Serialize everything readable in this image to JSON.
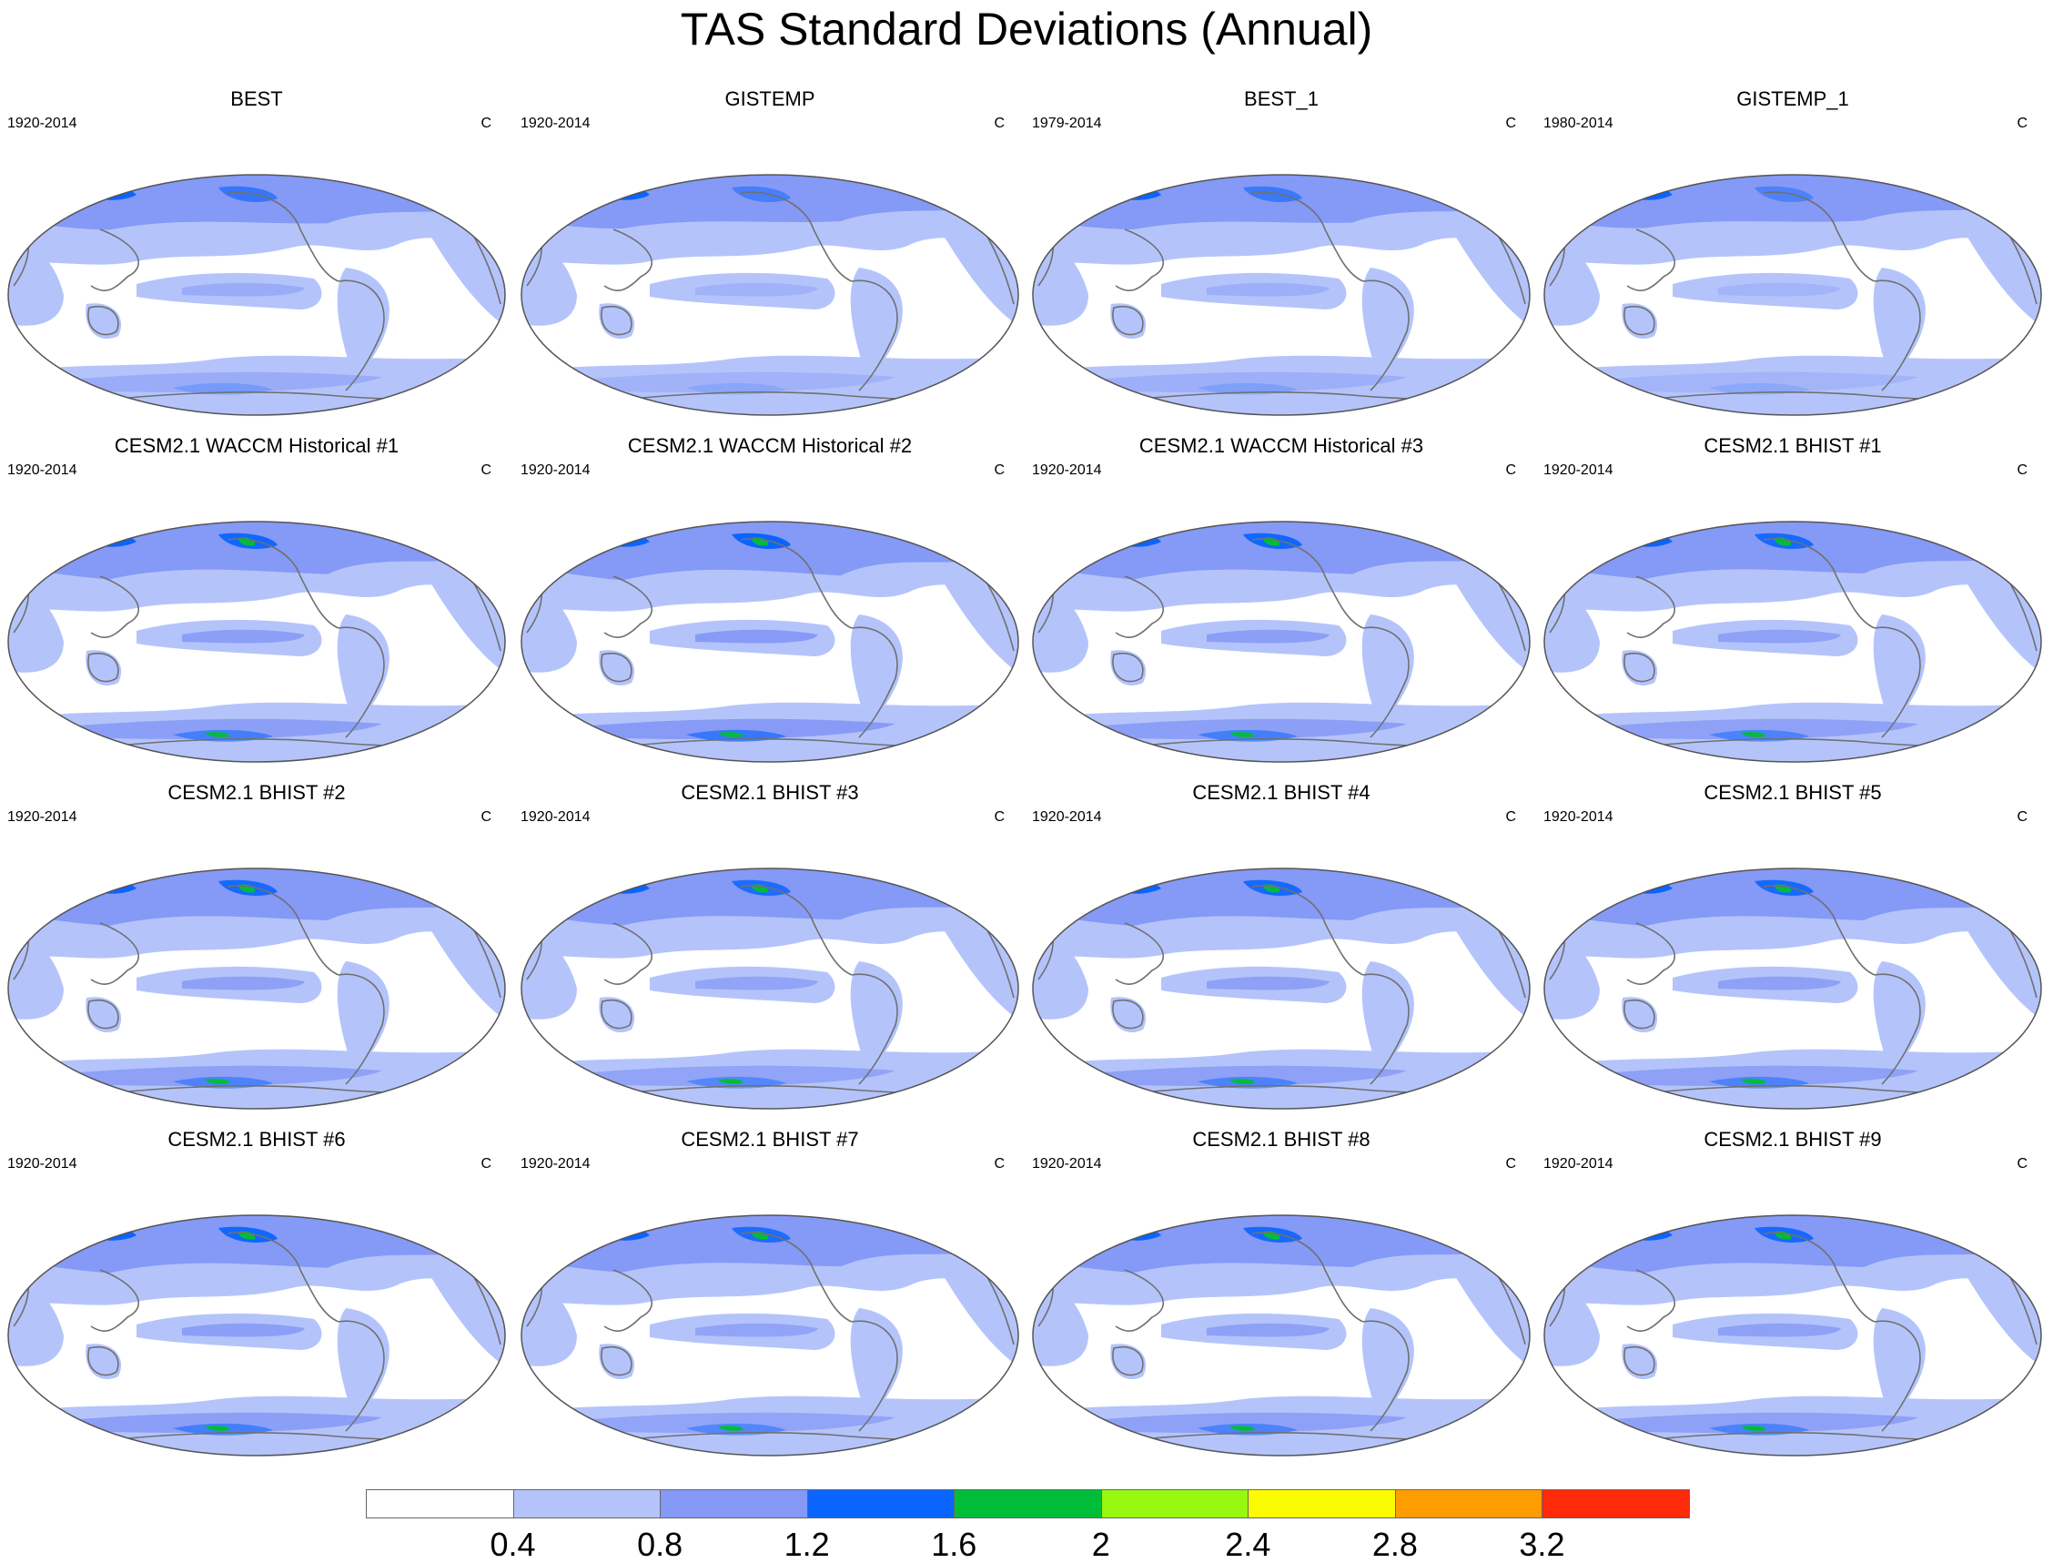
{
  "title": "TAS Standard Deviations (Annual)",
  "panels": [
    {
      "title": "BEST",
      "left": "1920-2014",
      "right": "C",
      "intensity": 0.55
    },
    {
      "title": "GISTEMP",
      "left": "1920-2014",
      "right": "C",
      "intensity": 0.4
    },
    {
      "title": "BEST_1",
      "left": "1979-2014",
      "right": "C",
      "intensity": 0.5
    },
    {
      "title": "GISTEMP_1",
      "left": "1980-2014",
      "right": "C",
      "intensity": 0.35
    },
    {
      "title": "CESM2.1 WACCM Historical #1",
      "left": "1920-2014",
      "right": "C",
      "intensity": 0.85
    },
    {
      "title": "CESM2.1 WACCM Historical #2",
      "left": "1920-2014",
      "right": "C",
      "intensity": 0.95
    },
    {
      "title": "CESM2.1 WACCM Historical #3",
      "left": "1920-2014",
      "right": "C",
      "intensity": 0.85
    },
    {
      "title": "CESM2.1 BHIST #1",
      "left": "1920-2014",
      "right": "C",
      "intensity": 0.8
    },
    {
      "title": "CESM2.1 BHIST #2",
      "left": "1920-2014",
      "right": "C",
      "intensity": 0.8
    },
    {
      "title": "CESM2.1 BHIST #3",
      "left": "1920-2014",
      "right": "C",
      "intensity": 0.75
    },
    {
      "title": "CESM2.1 BHIST #4",
      "left": "1920-2014",
      "right": "C",
      "intensity": 0.8
    },
    {
      "title": "CESM2.1 BHIST #5",
      "left": "1920-2014",
      "right": "C",
      "intensity": 0.8
    },
    {
      "title": "CESM2.1 BHIST #6",
      "left": "1920-2014",
      "right": "C",
      "intensity": 0.85
    },
    {
      "title": "CESM2.1 BHIST #7",
      "left": "1920-2014",
      "right": "C",
      "intensity": 0.75
    },
    {
      "title": "CESM2.1 BHIST #8",
      "left": "1920-2014",
      "right": "C",
      "intensity": 0.8
    },
    {
      "title": "CESM2.1 BHIST #9",
      "left": "1920-2014",
      "right": "C",
      "intensity": 0.8
    }
  ],
  "colorbar": {
    "labels": [
      "0.4",
      "0.8",
      "1.2",
      "1.6",
      "2",
      "2.4",
      "2.8",
      "3.2"
    ],
    "colors": [
      "#ffffff",
      "#b4c4fb",
      "#8599f6",
      "#0a64ff",
      "#00bd39",
      "#97f70f",
      "#fcfc00",
      "#ff9d00",
      "#ff2a0a"
    ]
  },
  "colors": {
    "level1": "#b4c4fb",
    "level2": "#8599f6",
    "level3": "#0a64ff",
    "level4": "#00bd39",
    "coast": "#707070",
    "border": "#555555"
  }
}
